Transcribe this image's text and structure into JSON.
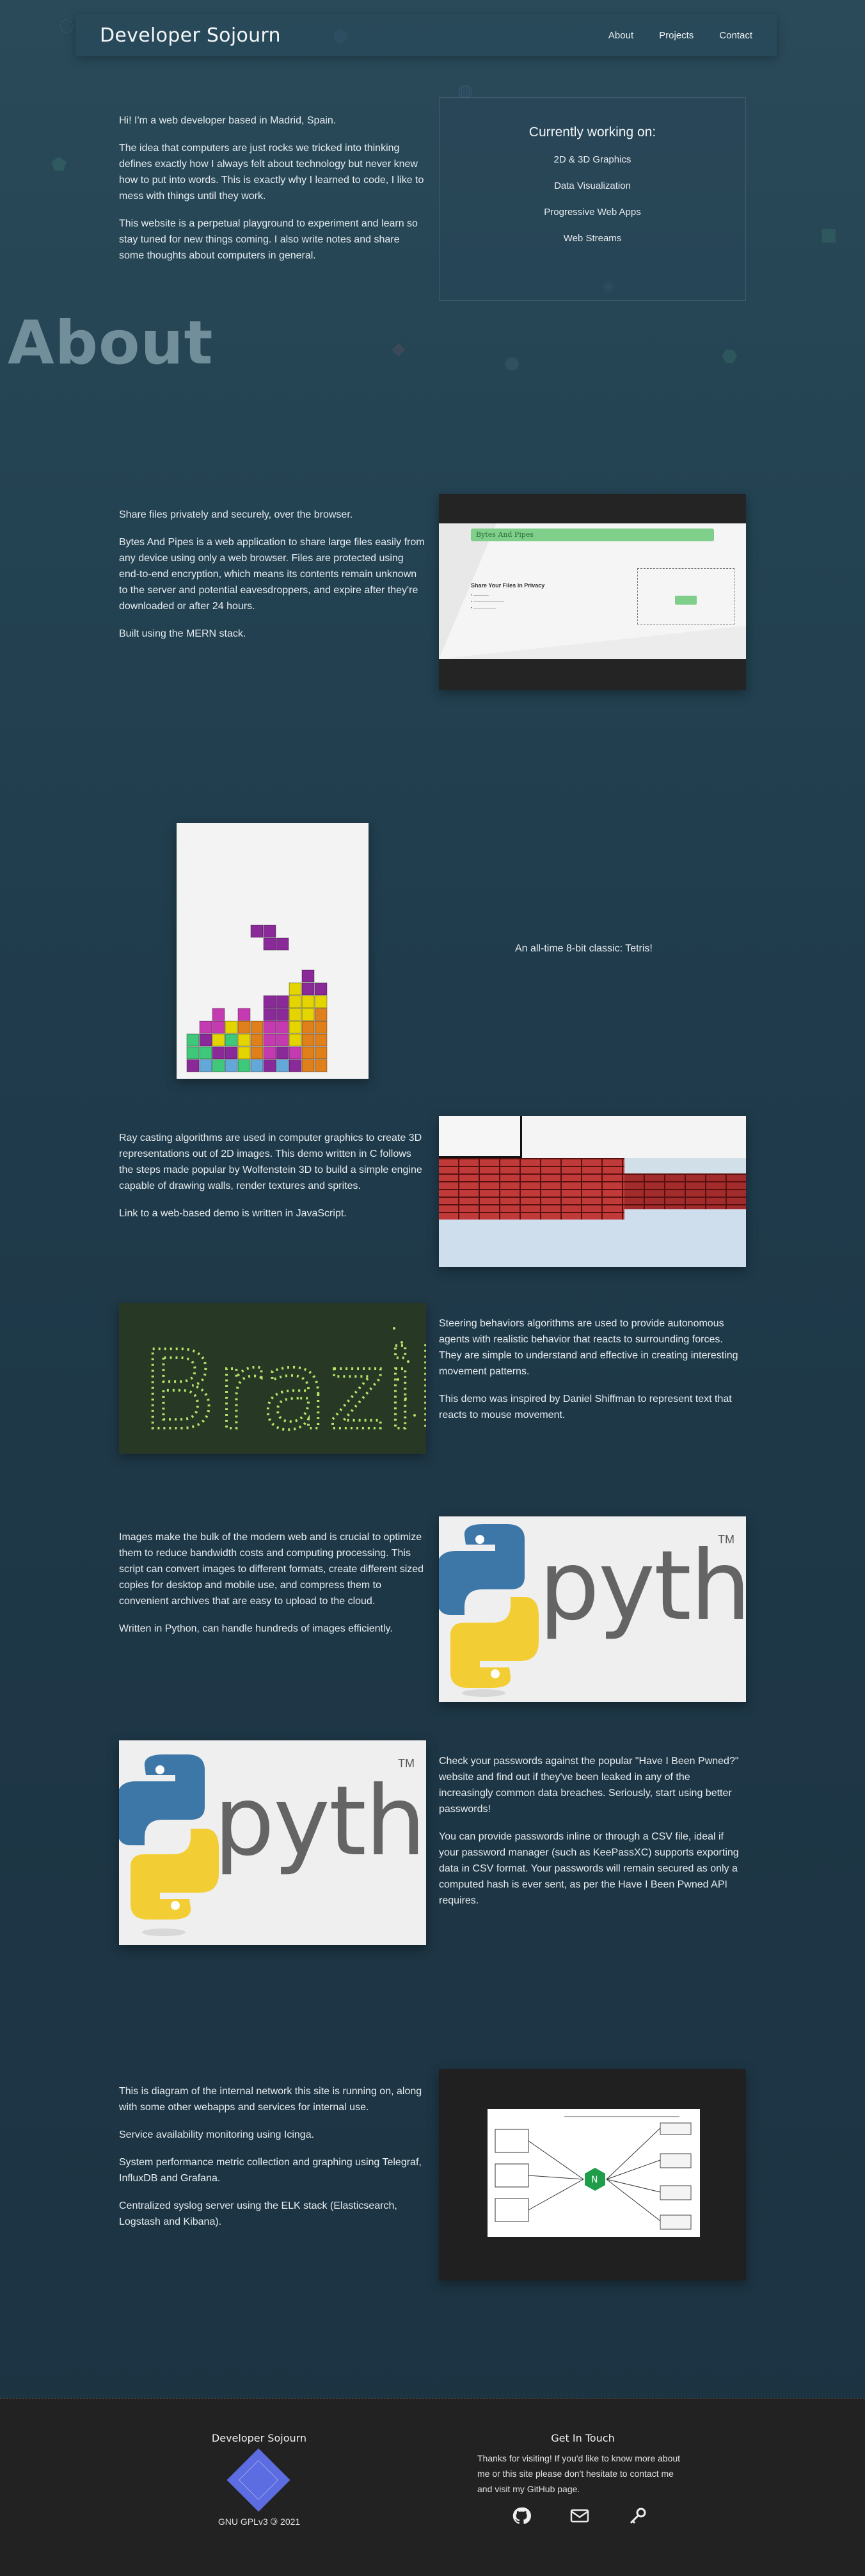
{
  "nav": {
    "brand": "Developer Sojourn",
    "links": [
      "About",
      "Projects",
      "Contact"
    ]
  },
  "intro": {
    "p1": "Hi! I'm a web developer based in Madrid, Spain.",
    "p2": "The idea that computers are just rocks we tricked into thinking defines exactly how I always felt about technology but never knew how to put into words. This is exactly why I learned to code, I like to mess with things until they work.",
    "p3": "This website is a perpetual playground to experiment and learn so stay tuned for new things coming. I also write notes and share some thoughts about computers in general."
  },
  "working_on": {
    "title": "Currently working on:",
    "items": [
      "2D & 3D Graphics",
      "Data Visualization",
      "Progressive Web Apps",
      "Web Streams"
    ]
  },
  "about_heading": "About",
  "projects": {
    "bytes": {
      "p1": "Share files privately and securely, over the browser.",
      "p2": "Bytes And Pipes is a web application to share large files easily from any device using only a web browser. Files are protected using end-to-end encryption, which means its contents remain unknown to the server and potential eavesdroppers, and expire after they're downloaded or after 24 hours.",
      "p3": "Built using the MERN stack.",
      "shot_brand": "Bytes And Pipes",
      "shot_title": "Share Your Files in Privacy"
    },
    "tetris": {
      "caption": "An all-time 8-bit classic: Tetris!"
    },
    "ray": {
      "p1": "Ray casting algorithms are used in computer graphics to create 3D representations out of 2D images. This demo written in C follows the steps made popular by Wolfenstein 3D to build a simple engine capable of drawing walls, render textures and sprites.",
      "p2": "Link to a web-based demo is written in JavaScript."
    },
    "steering": {
      "word": "Brazil",
      "p1": "Steering behaviors algorithms are used to provide autonomous agents with realistic behavior that reacts to surrounding forces. They are simple to understand and effective in creating interesting movement patterns.",
      "p2": "This demo was inspired by Daniel Shiffman to represent text that reacts to mouse movement."
    },
    "images": {
      "p1": "Images make the bulk of the modern web and is crucial to optimize them to reduce bandwidth costs and computing processing. This script can convert images to different formats, create different sized copies for desktop and mobile use, and compress them to convenient archives that are easy to upload to the cloud.",
      "p2": "Written in Python, can handle hundreds of images efficiently.",
      "logo_word": "python",
      "tm": "TM"
    },
    "pwned": {
      "p1": "Check your passwords against the popular \"Have I Been Pwned?\" website and find out if they've been leaked in any of the increasingly common data breaches. Seriously, start using better passwords!",
      "p2": "You can provide passwords inline or through a CSV file, ideal if your password manager (such as KeePassXC) supports exporting data in CSV format. Your passwords will remain secured as only a computed hash is ever sent, as per the Have I Been Pwned API requires.",
      "logo_word": "python",
      "tm": "TM"
    },
    "network": {
      "p1": "This is diagram of the internal network this site is running on, along with some other webapps and services for internal use.",
      "p2": "Service availability monitoring using Icinga.",
      "p3": "System performance metric collection and graphing using Telegraf, InfluxDB and Grafana.",
      "p4": "Centralized syslog server using the ELK stack (Elasticsearch, Logstash and Kibana)."
    }
  },
  "footer": {
    "brand": "Developer Sojourn",
    "license": "GNU GPLv3 🄯 2021",
    "contact_title": "Get In Touch",
    "contact_text": "Thanks for visiting! If you'd like to know more about me or this site please don't hesitate to contact me and visit my GitHub page."
  }
}
